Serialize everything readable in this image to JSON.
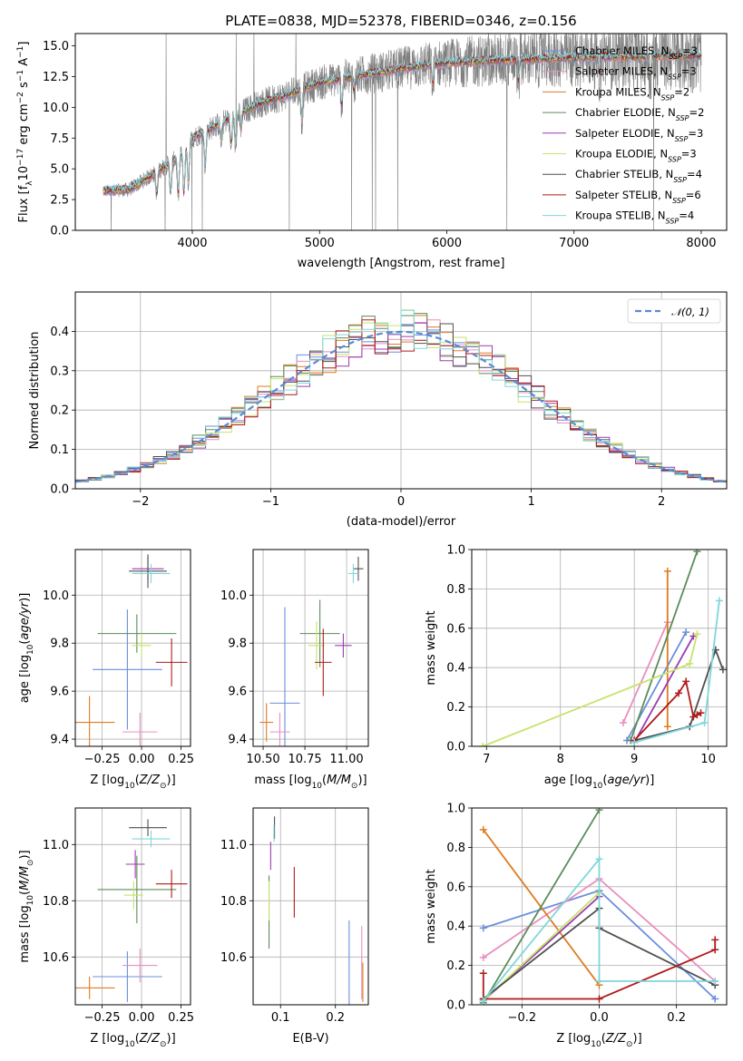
{
  "colors": {
    "Chabrier MILES": "#6a8fdc",
    "Salpeter MILES": "#e88fbd",
    "Kroupa MILES": "#e07b21",
    "Chabrier ELODIE": "#5a8c5a",
    "Salpeter ELODIE": "#9b3cb0",
    "Kroupa ELODIE": "#c6e36a",
    "Chabrier STELIB": "#4f4f4f",
    "Salpeter STELIB": "#b01a1a",
    "Kroupa STELIB": "#7fd6dc",
    "normal": "#5a8ad6",
    "spectrum": "#7f7f7f"
  },
  "chart_data": [
    {
      "id": "spectrum",
      "type": "line",
      "title": "PLATE=0838, MJD=52378, FIBERID=0346, z=0.156",
      "xlabel": "wavelength [Angstrom, rest frame]",
      "ylabel": "Flux [f_λ10^-17 erg cm^-2 s^-1 A^-1]",
      "xlim": [
        3080,
        8200
      ],
      "ylim": [
        0,
        16
      ],
      "xticks": [
        "4000",
        "5000",
        "6000",
        "7000",
        "8000"
      ],
      "yticks": [
        "0.0",
        "2.5",
        "5.0",
        "7.5",
        "10.0",
        "12.5",
        "15.0"
      ],
      "continuum_x": [
        3300,
        3500,
        3700,
        3900,
        4000,
        4200,
        4500,
        4800,
        5000,
        5200,
        5500,
        5800,
        6000,
        6300,
        6600,
        6900,
        7200,
        7500,
        7800,
        8000
      ],
      "continuum_y": [
        3.2,
        3.3,
        4.6,
        6.0,
        7.5,
        8.6,
        10.2,
        11.2,
        12.0,
        12.4,
        12.9,
        13.4,
        13.6,
        13.8,
        13.9,
        14.0,
        14.1,
        14.1,
        14.2,
        14.2
      ],
      "legend": [
        {
          "label": "Chabrier MILES, N",
          "sub": "SSP",
          "tail": "=3"
        },
        {
          "label": "Salpeter MILES, N",
          "sub": "SSP",
          "tail": "=3"
        },
        {
          "label": "Kroupa MILES, N",
          "sub": "SSP",
          "tail": "=2"
        },
        {
          "label": "Chabrier ELODIE, N",
          "sub": "SSP",
          "tail": "=2"
        },
        {
          "label": "Salpeter ELODIE, N",
          "sub": "SSP",
          "tail": "=3"
        },
        {
          "label": "Kroupa ELODIE, N",
          "sub": "SSP",
          "tail": "=3"
        },
        {
          "label": "Chabrier STELIB, N",
          "sub": "SSP",
          "tail": "=4"
        },
        {
          "label": "Salpeter STELIB, N",
          "sub": "SSP",
          "tail": "=6"
        },
        {
          "label": "Kroupa STELIB, N",
          "sub": "SSP",
          "tail": "=4"
        }
      ]
    },
    {
      "id": "residuals",
      "type": "line",
      "xlabel": "(data-model)/error",
      "ylabel": "Normed distribution",
      "xlim": [
        -2.5,
        2.5
      ],
      "ylim": [
        0,
        0.5
      ],
      "xticks": [
        "−2",
        "−1",
        "0",
        "1",
        "2"
      ],
      "yticks": [
        "0.0",
        "0.1",
        "0.2",
        "0.3",
        "0.4"
      ],
      "legend": "𝒩(0, 1)",
      "bin_width": 0.1
    },
    {
      "id": "z-age",
      "type": "scatter",
      "xlabel": "Z [log10(Z/Z⊙)]",
      "ylabel": "age [log10(age/yr)]",
      "xlim": [
        -0.42,
        0.31
      ],
      "ylim": [
        9.37,
        10.19
      ],
      "xticks": [
        "−0.25",
        "0.00",
        "0.25"
      ],
      "yticks": [
        "9.4",
        "9.6",
        "9.8",
        "10.0"
      ],
      "points": [
        {
          "model": "Chabrier MILES",
          "x": -0.09,
          "xerr": 0.22,
          "y": 9.69,
          "yerr": 0.25
        },
        {
          "model": "Salpeter MILES",
          "x": -0.01,
          "xerr": 0.11,
          "y": 9.43,
          "yerr": 0.08
        },
        {
          "model": "Kroupa MILES",
          "x": -0.33,
          "xerr": 0.16,
          "y": 9.47,
          "yerr": 0.11
        },
        {
          "model": "Chabrier ELODIE",
          "x": -0.03,
          "xerr": 0.25,
          "y": 9.84,
          "yerr": 0.08
        },
        {
          "model": "Salpeter ELODIE",
          "x": 0.04,
          "xerr": 0.1,
          "y": 10.11,
          "yerr": 0.05
        },
        {
          "model": "Kroupa ELODIE",
          "x": 0.0,
          "xerr": 0.06,
          "y": 9.79,
          "yerr": 0.05
        },
        {
          "model": "Chabrier STELIB",
          "x": 0.04,
          "xerr": 0.12,
          "y": 10.1,
          "yerr": 0.07
        },
        {
          "model": "Salpeter STELIB",
          "x": 0.19,
          "xerr": 0.1,
          "y": 9.72,
          "yerr": 0.1
        },
        {
          "model": "Kroupa STELIB",
          "x": 0.06,
          "xerr": 0.12,
          "y": 10.09,
          "yerr": 0.04
        }
      ]
    },
    {
      "id": "mass-age",
      "type": "scatter",
      "xlabel": "mass [log10(M/M⊙)]",
      "ylabel": "",
      "xlim": [
        10.44,
        11.13
      ],
      "ylim": [
        9.37,
        10.19
      ],
      "xticks": [
        "10.50",
        "10.75",
        "11.00"
      ],
      "yticks": [
        "9.4",
        "9.6",
        "9.8",
        "10.0"
      ],
      "points": [
        {
          "model": "Chabrier MILES",
          "x": 10.63,
          "xerr": 0.09,
          "y": 9.55,
          "yerr": 0.4
        },
        {
          "model": "Salpeter MILES",
          "x": 10.6,
          "xerr": 0.06,
          "y": 9.43,
          "yerr": 0.08
        },
        {
          "model": "Kroupa MILES",
          "x": 10.52,
          "xerr": 0.04,
          "y": 9.47,
          "yerr": 0.08
        },
        {
          "model": "Chabrier ELODIE",
          "x": 10.84,
          "xerr": 0.12,
          "y": 9.84,
          "yerr": 0.14
        },
        {
          "model": "Salpeter ELODIE",
          "x": 10.98,
          "xerr": 0.05,
          "y": 9.79,
          "yerr": 0.05
        },
        {
          "model": "Kroupa ELODIE",
          "x": 10.82,
          "xerr": 0.05,
          "y": 9.79,
          "yerr": 0.1
        },
        {
          "model": "Chabrier STELIB",
          "x": 11.07,
          "xerr": 0.03,
          "y": 10.11,
          "yerr": 0.05
        },
        {
          "model": "Salpeter STELIB",
          "x": 10.86,
          "xerr": 0.05,
          "y": 9.72,
          "yerr": 0.14
        },
        {
          "model": "Kroupa STELIB",
          "x": 11.04,
          "xerr": 0.03,
          "y": 10.09,
          "yerr": 0.04
        }
      ]
    },
    {
      "id": "age-weight",
      "type": "line",
      "xlabel": "age [log10(age/yr)]",
      "ylabel": "mass weight",
      "xlim": [
        6.8,
        10.25
      ],
      "ylim": [
        0,
        1
      ],
      "xticks": [
        "7",
        "8",
        "9",
        "10"
      ],
      "yticks": [
        "0.0",
        "0.2",
        "0.4",
        "0.6",
        "0.8",
        "1.0"
      ],
      "series": [
        {
          "model": "Chabrier MILES",
          "x": [
            8.9,
            9.7
          ],
          "y": [
            0.03,
            0.58
          ]
        },
        {
          "model": "Salpeter MILES",
          "x": [
            8.85,
            9.45
          ],
          "y": [
            0.12,
            0.63
          ]
        },
        {
          "model": "Kroupa MILES",
          "x": [
            9.45,
            9.45
          ],
          "y": [
            0.1,
            0.89
          ]
        },
        {
          "model": "Chabrier ELODIE",
          "x": [
            8.95,
            9.85
          ],
          "y": [
            0.03,
            0.99
          ]
        },
        {
          "model": "Salpeter ELODIE",
          "x": [
            9.0,
            9.8
          ],
          "y": [
            0.02,
            0.56
          ]
        },
        {
          "model": "Kroupa ELODIE",
          "x": [
            6.95,
            9.75,
            9.85
          ],
          "y": [
            0.0,
            0.42,
            0.57
          ]
        },
        {
          "model": "Chabrier STELIB",
          "x": [
            9.0,
            9.75,
            10.1,
            10.2
          ],
          "y": [
            0.03,
            0.1,
            0.49,
            0.39
          ]
        },
        {
          "model": "Salpeter STELIB",
          "x": [
            9.0,
            9.6,
            9.7,
            9.8,
            9.85,
            9.9
          ],
          "y": [
            0.03,
            0.27,
            0.33,
            0.15,
            0.16,
            0.17
          ]
        },
        {
          "model": "Kroupa STELIB",
          "x": [
            9.0,
            9.95,
            10.15
          ],
          "y": [
            0.02,
            0.12,
            0.74
          ]
        }
      ]
    },
    {
      "id": "z-mass",
      "type": "scatter",
      "xlabel": "Z [log10(Z/Z⊙)]",
      "ylabel": "mass [log10(M/M⊙)]",
      "xlim": [
        -0.42,
        0.31
      ],
      "ylim": [
        10.43,
        11.13
      ],
      "xticks": [
        "−0.25",
        "0.00",
        "0.25"
      ],
      "yticks": [
        "10.6",
        "10.8",
        "11.0"
      ],
      "points": [
        {
          "model": "Chabrier MILES",
          "x": -0.09,
          "xerr": 0.22,
          "y": 10.53,
          "yerr": 0.09
        },
        {
          "model": "Salpeter MILES",
          "x": -0.01,
          "xerr": 0.11,
          "y": 10.57,
          "yerr": 0.06
        },
        {
          "model": "Kroupa MILES",
          "x": -0.33,
          "xerr": 0.16,
          "y": 10.49,
          "yerr": 0.04
        },
        {
          "model": "Chabrier ELODIE",
          "x": -0.03,
          "xerr": 0.25,
          "y": 10.84,
          "yerr": 0.12
        },
        {
          "model": "Salpeter ELODIE",
          "x": -0.04,
          "xerr": 0.06,
          "y": 10.93,
          "yerr": 0.05
        },
        {
          "model": "Kroupa ELODIE",
          "x": -0.05,
          "xerr": 0.06,
          "y": 10.82,
          "yerr": 0.05
        },
        {
          "model": "Chabrier STELIB",
          "x": 0.04,
          "xerr": 0.12,
          "y": 11.06,
          "yerr": 0.03
        },
        {
          "model": "Salpeter STELIB",
          "x": 0.19,
          "xerr": 0.1,
          "y": 10.86,
          "yerr": 0.05
        },
        {
          "model": "Kroupa STELIB",
          "x": 0.06,
          "xerr": 0.12,
          "y": 11.02,
          "yerr": 0.03
        }
      ]
    },
    {
      "id": "ebv-mass",
      "type": "scatter",
      "xlabel": "E(B-V)",
      "ylabel": "",
      "xlim": [
        0.05,
        0.26
      ],
      "ylim": [
        10.43,
        11.13
      ],
      "xticks": [
        "0.1",
        "0.2"
      ],
      "yticks": [
        "10.6",
        "10.8",
        "11.0"
      ],
      "points": [
        {
          "model": "Chabrier MILES",
          "x": 0.225,
          "xerr": 0,
          "y": 10.55,
          "yerr": 0.18
        },
        {
          "model": "Salpeter MILES",
          "x": 0.248,
          "xerr": 0,
          "y": 10.58,
          "yerr": 0.13
        },
        {
          "model": "Kroupa MILES",
          "x": 0.25,
          "xerr": 0,
          "y": 10.51,
          "yerr": 0.07
        },
        {
          "model": "Chabrier ELODIE",
          "x": 0.079,
          "xerr": 0,
          "y": 10.76,
          "yerr": 0.13
        },
        {
          "model": "Salpeter ELODIE",
          "x": 0.082,
          "xerr": 0,
          "y": 10.96,
          "yerr": 0.05
        },
        {
          "model": "Kroupa ELODIE",
          "x": 0.079,
          "xerr": 0,
          "y": 10.8,
          "yerr": 0.07
        },
        {
          "model": "Chabrier STELIB",
          "x": 0.089,
          "xerr": 0,
          "y": 11.06,
          "yerr": 0.04
        },
        {
          "model": "Salpeter STELIB",
          "x": 0.125,
          "xerr": 0,
          "y": 10.83,
          "yerr": 0.09
        },
        {
          "model": "Kroupa STELIB",
          "x": 0.088,
          "xerr": 0,
          "y": 11.04,
          "yerr": 0.03
        }
      ]
    },
    {
      "id": "z-weight",
      "type": "line",
      "xlabel": "Z [log10(Z/Z⊙)]",
      "ylabel": "mass weight",
      "xlim": [
        -0.33,
        0.33
      ],
      "ylim": [
        0,
        1
      ],
      "xticks": [
        "−0.2",
        "0.0",
        "0.2"
      ],
      "yticks": [
        "0.0",
        "0.2",
        "0.4",
        "0.6",
        "0.8",
        "1.0"
      ],
      "series": [
        {
          "model": "Chabrier MILES",
          "x": [
            -0.3,
            0.0,
            0.3
          ],
          "y": [
            0.39,
            0.58,
            0.03
          ]
        },
        {
          "model": "Salpeter MILES",
          "x": [
            -0.3,
            0.0,
            0.3
          ],
          "y": [
            0.24,
            0.64,
            0.12
          ]
        },
        {
          "model": "Kroupa MILES",
          "x": [
            -0.3,
            0.0
          ],
          "y": [
            0.89,
            0.1
          ]
        },
        {
          "model": "Chabrier ELODIE",
          "x": [
            -0.3,
            0.0
          ],
          "y": [
            0.01,
            0.99
          ]
        },
        {
          "model": "Salpeter ELODIE",
          "x": [
            -0.3,
            0.0
          ],
          "y": [
            0.02,
            0.55
          ]
        },
        {
          "model": "Kroupa ELODIE",
          "x": [
            -0.3,
            0.0
          ],
          "y": [
            0.02,
            0.57
          ]
        },
        {
          "model": "Chabrier STELIB",
          "x": [
            -0.3,
            0.0,
            0.0,
            0.3
          ],
          "y": [
            0.03,
            0.49,
            0.39,
            0.1
          ]
        },
        {
          "model": "Salpeter STELIB",
          "x": [
            -0.3,
            -0.3,
            0.0,
            0.3,
            0.3
          ],
          "y": [
            0.16,
            0.03,
            0.03,
            0.28,
            0.33
          ]
        },
        {
          "model": "Kroupa STELIB",
          "x": [
            -0.3,
            0.0,
            0.0,
            0.3
          ],
          "y": [
            0.02,
            0.74,
            0.12,
            0.12
          ]
        }
      ]
    }
  ]
}
